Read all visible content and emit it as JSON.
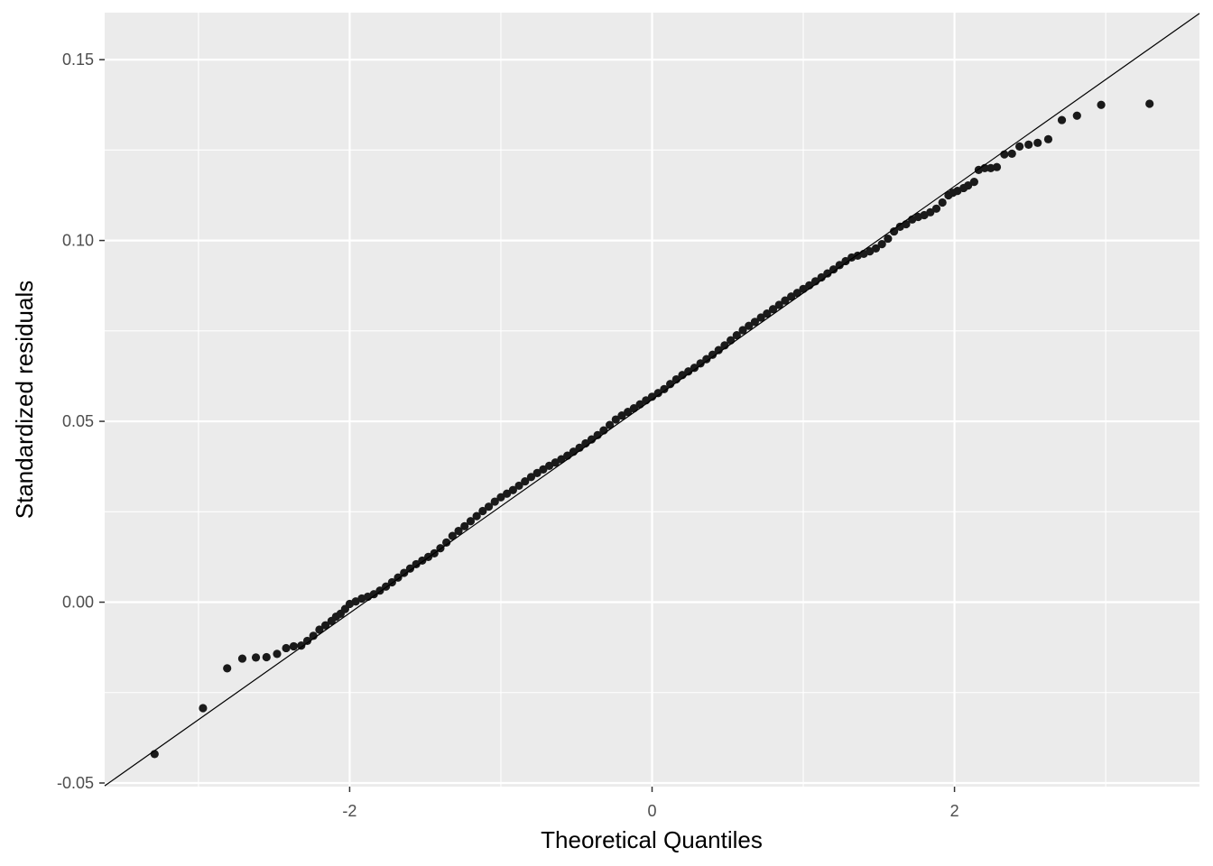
{
  "chart_data": {
    "type": "scatter",
    "title": "",
    "xlabel": "Theoretical Quantiles",
    "ylabel": "Standardized residuals",
    "xlim": [
      -3.62,
      3.62
    ],
    "ylim": [
      -0.051,
      0.163
    ],
    "grid": true,
    "x_ticks": [
      {
        "value": -2,
        "label": "-2"
      },
      {
        "value": 0,
        "label": "0"
      },
      {
        "value": 2,
        "label": "2"
      }
    ],
    "x_minor": [
      -3,
      -1,
      1,
      3
    ],
    "y_ticks": [
      {
        "value": -0.05,
        "label": "-0.05"
      },
      {
        "value": 0.0,
        "label": "0.00"
      },
      {
        "value": 0.05,
        "label": "0.05"
      },
      {
        "value": 0.1,
        "label": "0.10"
      },
      {
        "value": 0.15,
        "label": "0.15"
      }
    ],
    "y_minor": [
      -0.025,
      0.025,
      0.075,
      0.125
    ],
    "reference_line": {
      "intercept": 0.056,
      "slope": 0.0295
    },
    "series": [
      {
        "points": [
          [
            -3.29,
            -0.042
          ],
          [
            -2.97,
            -0.0293
          ],
          [
            -2.81,
            -0.0183
          ],
          [
            -2.71,
            -0.0156
          ],
          [
            -2.62,
            -0.0153
          ],
          [
            -2.55,
            -0.0152
          ],
          [
            -2.48,
            -0.0143
          ],
          [
            -2.42,
            -0.0127
          ],
          [
            -2.37,
            -0.0122
          ],
          [
            -2.32,
            -0.012
          ],
          [
            -2.28,
            -0.0107
          ],
          [
            -2.24,
            -0.0093
          ],
          [
            -2.2,
            -0.0076
          ],
          [
            -2.16,
            -0.0064
          ],
          [
            -2.12,
            -0.0052
          ],
          [
            -2.09,
            -0.004
          ],
          [
            -2.06,
            -0.0032
          ],
          [
            -2.03,
            -0.0019
          ],
          [
            -2.0,
            -0.0005
          ],
          [
            -1.96,
            0.0002
          ],
          [
            -1.92,
            0.001
          ],
          [
            -1.88,
            0.0015
          ],
          [
            -1.84,
            0.0022
          ],
          [
            -1.8,
            0.0032
          ],
          [
            -1.76,
            0.0043
          ],
          [
            -1.72,
            0.0055
          ],
          [
            -1.68,
            0.0068
          ],
          [
            -1.64,
            0.0081
          ],
          [
            -1.6,
            0.0093
          ],
          [
            -1.56,
            0.0105
          ],
          [
            -1.52,
            0.0115
          ],
          [
            -1.48,
            0.0125
          ],
          [
            -1.44,
            0.0135
          ],
          [
            -1.4,
            0.0149
          ],
          [
            -1.36,
            0.0165
          ],
          [
            -1.32,
            0.0183
          ],
          [
            -1.28,
            0.0197
          ],
          [
            -1.24,
            0.021
          ],
          [
            -1.2,
            0.0224
          ],
          [
            -1.16,
            0.0238
          ],
          [
            -1.12,
            0.0252
          ],
          [
            -1.08,
            0.0264
          ],
          [
            -1.04,
            0.0278
          ],
          [
            -1.0,
            0.029
          ],
          [
            -0.96,
            0.03
          ],
          [
            -0.92,
            0.031
          ],
          [
            -0.88,
            0.0322
          ],
          [
            -0.84,
            0.0334
          ],
          [
            -0.8,
            0.0346
          ],
          [
            -0.76,
            0.0357
          ],
          [
            -0.72,
            0.0367
          ],
          [
            -0.68,
            0.0377
          ],
          [
            -0.64,
            0.0386
          ],
          [
            -0.6,
            0.0395
          ],
          [
            -0.56,
            0.0405
          ],
          [
            -0.52,
            0.0416
          ],
          [
            -0.48,
            0.0427
          ],
          [
            -0.44,
            0.0439
          ],
          [
            -0.4,
            0.045
          ],
          [
            -0.36,
            0.0462
          ],
          [
            -0.32,
            0.0475
          ],
          [
            -0.28,
            0.049
          ],
          [
            -0.24,
            0.0505
          ],
          [
            -0.2,
            0.0516
          ],
          [
            -0.16,
            0.0526
          ],
          [
            -0.12,
            0.0536
          ],
          [
            -0.08,
            0.0547
          ],
          [
            -0.04,
            0.0558
          ],
          [
            0.0,
            0.0568
          ],
          [
            0.04,
            0.0578
          ],
          [
            0.08,
            0.0589
          ],
          [
            0.12,
            0.0603
          ],
          [
            0.16,
            0.0616
          ],
          [
            0.2,
            0.0628
          ],
          [
            0.24,
            0.0638
          ],
          [
            0.28,
            0.0648
          ],
          [
            0.32,
            0.066
          ],
          [
            0.36,
            0.0672
          ],
          [
            0.4,
            0.0684
          ],
          [
            0.44,
            0.0697
          ],
          [
            0.48,
            0.071
          ],
          [
            0.52,
            0.0724
          ],
          [
            0.56,
            0.0738
          ],
          [
            0.6,
            0.0752
          ],
          [
            0.64,
            0.0764
          ],
          [
            0.68,
            0.0775
          ],
          [
            0.72,
            0.0787
          ],
          [
            0.76,
            0.0798
          ],
          [
            0.8,
            0.081
          ],
          [
            0.84,
            0.0822
          ],
          [
            0.88,
            0.0834
          ],
          [
            0.92,
            0.0845
          ],
          [
            0.96,
            0.0855
          ],
          [
            1.0,
            0.0866
          ],
          [
            1.04,
            0.0876
          ],
          [
            1.08,
            0.0887
          ],
          [
            1.12,
            0.0898
          ],
          [
            1.16,
            0.0909
          ],
          [
            1.2,
            0.092
          ],
          [
            1.24,
            0.0932
          ],
          [
            1.28,
            0.0943
          ],
          [
            1.32,
            0.0953
          ],
          [
            1.36,
            0.0958
          ],
          [
            1.4,
            0.0963
          ],
          [
            1.44,
            0.097
          ],
          [
            1.48,
            0.0978
          ],
          [
            1.52,
            0.099
          ],
          [
            1.56,
            0.1005
          ],
          [
            1.6,
            0.1025
          ],
          [
            1.64,
            0.1038
          ],
          [
            1.68,
            0.1045
          ],
          [
            1.72,
            0.1058
          ],
          [
            1.76,
            0.1065
          ],
          [
            1.8,
            0.107
          ],
          [
            1.84,
            0.1078
          ],
          [
            1.88,
            0.1088
          ],
          [
            1.92,
            0.1105
          ],
          [
            1.96,
            0.1125
          ],
          [
            1.99,
            0.1132
          ],
          [
            2.02,
            0.1137
          ],
          [
            2.06,
            0.1145
          ],
          [
            2.09,
            0.1152
          ],
          [
            2.13,
            0.1162
          ],
          [
            2.16,
            0.1195
          ],
          [
            2.2,
            0.12
          ],
          [
            2.24,
            0.12
          ],
          [
            2.28,
            0.1203
          ],
          [
            2.33,
            0.1238
          ],
          [
            2.38,
            0.124
          ],
          [
            2.43,
            0.126
          ],
          [
            2.49,
            0.1265
          ],
          [
            2.55,
            0.127
          ],
          [
            2.62,
            0.128
          ],
          [
            2.71,
            0.1333
          ],
          [
            2.81,
            0.1345
          ],
          [
            2.97,
            0.1375
          ],
          [
            3.29,
            0.1378
          ]
        ]
      }
    ]
  }
}
